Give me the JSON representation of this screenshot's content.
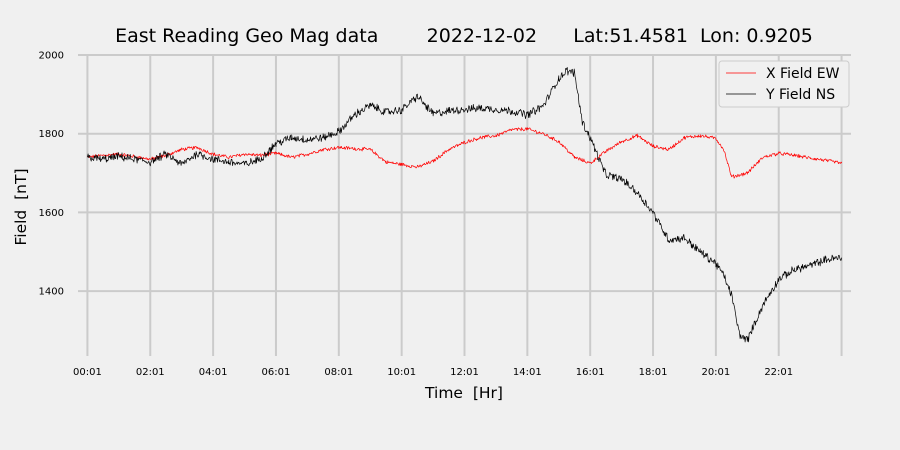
{
  "chart_data": {
    "type": "line",
    "title": "East Reading Geo Mag data        2022-12-02      Lat:51.4581  Lon: 0.9205",
    "xlabel": "Time  [Hr]",
    "ylabel": "Field  [nT]",
    "x_unit": "hours",
    "xlim": [
      -0.3,
      24.3
    ],
    "ylim": [
      1235,
      2000
    ],
    "x_ticks": [
      {
        "value": 0,
        "label": "00:01"
      },
      {
        "value": 2,
        "label": "02:01"
      },
      {
        "value": 4,
        "label": "04:01"
      },
      {
        "value": 6,
        "label": "06:01"
      },
      {
        "value": 8,
        "label": "08:01"
      },
      {
        "value": 10,
        "label": "10:01"
      },
      {
        "value": 12,
        "label": "12:01"
      },
      {
        "value": 14,
        "label": "14:01"
      },
      {
        "value": 16,
        "label": "16:01"
      },
      {
        "value": 18,
        "label": "18:01"
      },
      {
        "value": 20,
        "label": "20:01"
      },
      {
        "value": 22,
        "label": "22:01"
      }
    ],
    "x_gridlines": [
      0,
      2,
      4,
      6,
      8,
      10,
      12,
      14,
      16,
      18,
      20,
      22,
      24
    ],
    "y_ticks": [
      1400,
      1600,
      1800,
      2000
    ],
    "grid": true,
    "legend_position": "top-right",
    "series": [
      {
        "name": "X Field EW",
        "color": "#ff0000",
        "x": [
          0,
          0.5,
          1,
          1.5,
          2,
          2.5,
          3,
          3.5,
          4,
          4.5,
          5,
          5.5,
          6,
          6.5,
          7,
          7.5,
          8,
          8.5,
          9,
          9.5,
          10,
          10.5,
          11,
          11.5,
          12,
          12.5,
          13,
          13.5,
          14,
          14.5,
          15,
          15.5,
          16,
          16.5,
          17,
          17.5,
          18,
          18.5,
          19,
          19.5,
          20,
          20.25,
          20.5,
          21,
          21.5,
          22,
          22.5,
          23,
          23.5,
          24
        ],
        "y": [
          1740,
          1745,
          1748,
          1742,
          1735,
          1745,
          1760,
          1765,
          1748,
          1740,
          1748,
          1745,
          1750,
          1740,
          1748,
          1760,
          1765,
          1762,
          1760,
          1728,
          1722,
          1715,
          1730,
          1760,
          1778,
          1790,
          1795,
          1810,
          1812,
          1800,
          1780,
          1740,
          1725,
          1755,
          1780,
          1795,
          1768,
          1760,
          1790,
          1795,
          1788,
          1760,
          1690,
          1700,
          1740,
          1750,
          1745,
          1738,
          1732,
          1725
        ]
      },
      {
        "name": "Y Field NS",
        "color": "#000000",
        "x": [
          0,
          0.5,
          1,
          1.5,
          2,
          2.5,
          3,
          3.5,
          4,
          4.5,
          5,
          5.5,
          6,
          6.5,
          7,
          7.5,
          8,
          8.5,
          9,
          9.5,
          10,
          10.5,
          11,
          11.5,
          12,
          12.5,
          13,
          13.5,
          14,
          14.5,
          15,
          15.25,
          15.5,
          15.75,
          16,
          16.5,
          17,
          17.5,
          18,
          18.5,
          19,
          19.5,
          20,
          20.25,
          20.5,
          20.75,
          21,
          21.5,
          22,
          22.5,
          23,
          23.5,
          24
        ],
        "y": [
          1740,
          1735,
          1742,
          1735,
          1728,
          1748,
          1722,
          1750,
          1735,
          1728,
          1722,
          1735,
          1775,
          1790,
          1785,
          1790,
          1805,
          1848,
          1872,
          1855,
          1860,
          1895,
          1850,
          1858,
          1862,
          1865,
          1862,
          1858,
          1848,
          1870,
          1940,
          1960,
          1955,
          1830,
          1790,
          1695,
          1685,
          1650,
          1600,
          1530,
          1535,
          1500,
          1470,
          1440,
          1390,
          1290,
          1275,
          1365,
          1430,
          1455,
          1465,
          1480,
          1485
        ]
      }
    ]
  }
}
